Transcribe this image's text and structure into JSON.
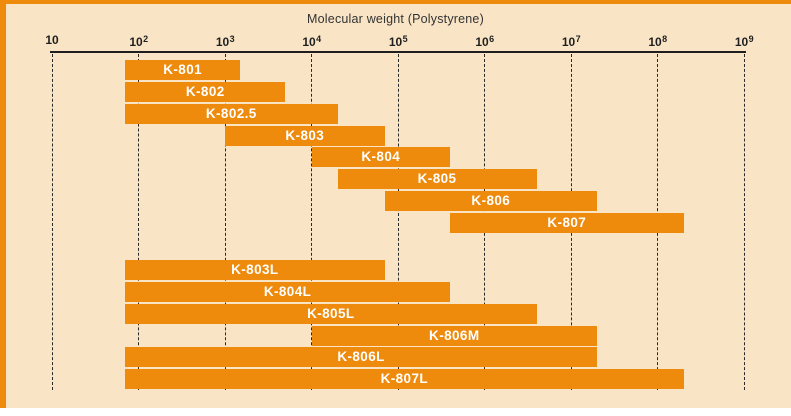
{
  "title": "Molecular weight (Polystyrene)",
  "colors": {
    "background": "#F9E5C6",
    "bar": "#EE8A0C",
    "frame": "#EE8A0C",
    "axis": "#1F1F1F",
    "bar_label": "#FFFFFF"
  },
  "chart_data": {
    "type": "bar",
    "variant": "horizontal-range-bars-on-log-axis",
    "title": "Molecular weight (Polystyrene)",
    "grid": "vertical-dashed-per-decade",
    "x_axis": {
      "scale": "log10",
      "min": 10,
      "max": 1000000000,
      "ticks": [
        {
          "value": 10,
          "base": "10",
          "exp": ""
        },
        {
          "value": 100,
          "base": "10",
          "exp": "2"
        },
        {
          "value": 1000,
          "base": "10",
          "exp": "3"
        },
        {
          "value": 10000,
          "base": "10",
          "exp": "4"
        },
        {
          "value": 100000,
          "base": "10",
          "exp": "5"
        },
        {
          "value": 1000000,
          "base": "10",
          "exp": "6"
        },
        {
          "value": 10000000,
          "base": "10",
          "exp": "7"
        },
        {
          "value": 100000000,
          "base": "10",
          "exp": "8"
        },
        {
          "value": 1000000000,
          "base": "10",
          "exp": "9"
        }
      ]
    },
    "series": [
      {
        "name": "K-801",
        "group": "upper",
        "range_min": 70,
        "range_max": 1500
      },
      {
        "name": "K-802",
        "group": "upper",
        "range_min": 70,
        "range_max": 5000
      },
      {
        "name": "K-802.5",
        "group": "upper",
        "range_min": 70,
        "range_max": 20000
      },
      {
        "name": "K-803",
        "group": "upper",
        "range_min": 1000,
        "range_max": 70000
      },
      {
        "name": "K-804",
        "group": "upper",
        "range_min": 10000,
        "range_max": 400000
      },
      {
        "name": "K-805",
        "group": "upper",
        "range_min": 20000,
        "range_max": 4000000
      },
      {
        "name": "K-806",
        "group": "upper",
        "range_min": 70000,
        "range_max": 20000000
      },
      {
        "name": "K-807",
        "group": "upper",
        "range_min": 400000,
        "range_max": 200000000
      },
      {
        "name": "K-803L",
        "group": "lower",
        "range_min": 70,
        "range_max": 70000
      },
      {
        "name": "K-804L",
        "group": "lower",
        "range_min": 70,
        "range_max": 400000
      },
      {
        "name": "K-805L",
        "group": "lower",
        "range_min": 70,
        "range_max": 4000000
      },
      {
        "name": "K-806M",
        "group": "lower",
        "range_min": 10000,
        "range_max": 20000000
      },
      {
        "name": "K-806L",
        "group": "lower",
        "range_min": 70,
        "range_max": 20000000
      },
      {
        "name": "K-807L",
        "group": "lower",
        "range_min": 70,
        "range_max": 200000000
      }
    ]
  }
}
